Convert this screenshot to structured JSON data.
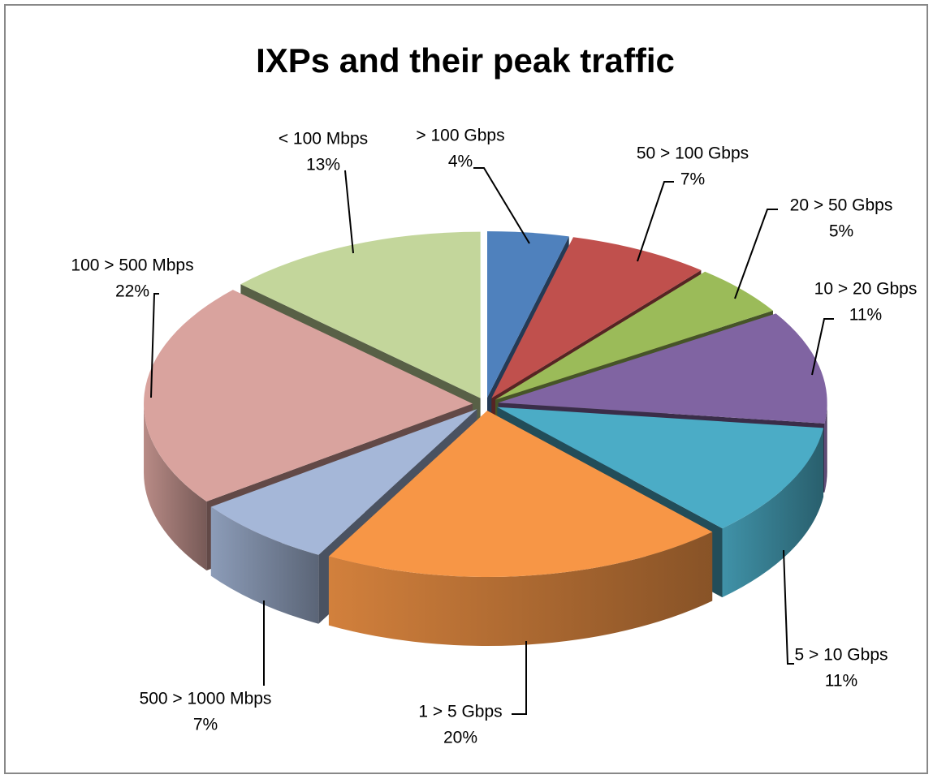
{
  "chart_data": {
    "type": "pie3d",
    "title": "IXPs and their peak traffic",
    "categories": [
      "> 100 Gbps",
      "50 > 100 Gbps",
      "20 > 50 Gbps",
      "10 > 20 Gbps",
      "5 > 10 Gbps",
      "1 > 5 Gbps",
      "500 > 1000 Mbps",
      "100 > 500 Mbps",
      "< 100 Mbps"
    ],
    "values": [
      4,
      7,
      5,
      11,
      11,
      20,
      7,
      22,
      13
    ],
    "value_labels": [
      "4%",
      "7%",
      "5%",
      "11%",
      "11%",
      "20%",
      "7%",
      "22%",
      "13%"
    ],
    "colors": [
      "#4f81bd",
      "#c0504d",
      "#9bbb59",
      "#8064a2",
      "#4bacc6",
      "#f79646",
      "#a5b7d8",
      "#d9a39e",
      "#c3d69b"
    ]
  }
}
